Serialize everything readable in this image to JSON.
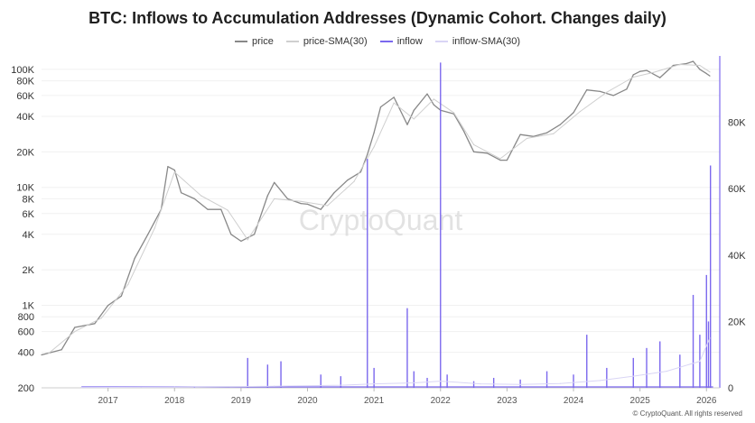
{
  "chart_data": {
    "type": "line",
    "title": "BTC: Inflows to Accumulation Addresses (Dynamic Cohort. Changes daily)",
    "watermark": "CryptoQuant",
    "footer": "© CryptoQuant. All rights reserved",
    "legend_position": "top-center",
    "x_tick_labels": [
      "2017",
      "2018",
      "2019",
      "2020",
      "2021",
      "2022",
      "2023",
      "2024",
      "2025",
      "2026"
    ],
    "left_axis": {
      "scale": "log",
      "range": [
        200,
        130000
      ],
      "tick_labels": [
        "100K",
        "80K",
        "60K",
        "40K",
        "20K",
        "10K",
        "8K",
        "6K",
        "4K",
        "2K",
        "1K",
        "800",
        "600",
        "400",
        "200"
      ],
      "tick_values": [
        100000,
        80000,
        60000,
        40000,
        20000,
        10000,
        8000,
        6000,
        4000,
        2000,
        1000,
        800,
        600,
        400,
        200
      ]
    },
    "right_axis": {
      "scale": "linear",
      "range": [
        0,
        100000
      ],
      "tick_labels": [
        "80K",
        "60K",
        "40K",
        "20K",
        "0"
      ],
      "tick_values": [
        80000,
        60000,
        40000,
        20000,
        0
      ]
    },
    "grid": true,
    "series": [
      {
        "name": "price",
        "axis": "left",
        "color": "#888888",
        "x": [
          2016.0,
          2016.3,
          2016.5,
          2016.8,
          2017.0,
          2017.2,
          2017.4,
          2017.6,
          2017.8,
          2017.9,
          2018.0,
          2018.1,
          2018.3,
          2018.5,
          2018.7,
          2018.85,
          2019.0,
          2019.2,
          2019.4,
          2019.5,
          2019.7,
          2019.9,
          2020.0,
          2020.2,
          2020.4,
          2020.6,
          2020.8,
          2020.9,
          2021.0,
          2021.1,
          2021.3,
          2021.5,
          2021.6,
          2021.8,
          2021.9,
          2022.0,
          2022.2,
          2022.35,
          2022.5,
          2022.7,
          2022.9,
          2023.0,
          2023.2,
          2023.4,
          2023.6,
          2023.8,
          2024.0,
          2024.2,
          2024.4,
          2024.6,
          2024.8,
          2024.9,
          2025.0,
          2025.1,
          2025.3,
          2025.5,
          2025.7,
          2025.8,
          2025.9,
          2026.0,
          2026.05
        ],
        "y": [
          380,
          420,
          650,
          700,
          1000,
          1200,
          2500,
          4000,
          6500,
          15000,
          14000,
          9000,
          8000,
          6500,
          6500,
          4000,
          3500,
          4000,
          8500,
          11000,
          8000,
          7300,
          7200,
          6500,
          9000,
          11500,
          13500,
          19000,
          29000,
          48000,
          58000,
          34000,
          45000,
          62000,
          50000,
          45000,
          42000,
          30000,
          20000,
          19500,
          17000,
          17000,
          28000,
          27000,
          29000,
          34000,
          43000,
          67000,
          65000,
          60000,
          68000,
          90000,
          96000,
          98000,
          85000,
          108000,
          112000,
          117000,
          100000,
          92000,
          88000
        ]
      },
      {
        "name": "price-SMA(30)",
        "axis": "left",
        "color": "#cfcfcf",
        "x": [
          2016.1,
          2016.5,
          2016.9,
          2017.3,
          2017.7,
          2018.0,
          2018.4,
          2018.8,
          2019.1,
          2019.5,
          2019.9,
          2020.3,
          2020.7,
          2021.0,
          2021.3,
          2021.6,
          2021.9,
          2022.2,
          2022.5,
          2022.9,
          2023.3,
          2023.7,
          2024.1,
          2024.5,
          2024.9,
          2025.2,
          2025.6,
          2025.9,
          2026.05
        ],
        "y": [
          390,
          600,
          780,
          1500,
          4500,
          13500,
          8500,
          6400,
          3600,
          8000,
          7600,
          7000,
          11200,
          22000,
          52000,
          38000,
          56000,
          43000,
          23000,
          17500,
          26000,
          28500,
          44000,
          64000,
          86000,
          94000,
          110000,
          108000,
          95000
        ]
      },
      {
        "name": "inflow",
        "axis": "right",
        "color": "#7b68ee",
        "x": [
          2016.6,
          2017.5,
          2018.3,
          2019.1,
          2019.4,
          2019.6,
          2020.2,
          2020.5,
          2020.9,
          2021.0,
          2021.5,
          2021.6,
          2021.8,
          2022.0,
          2022.1,
          2022.5,
          2022.8,
          2023.2,
          2023.6,
          2024.0,
          2024.2,
          2024.5,
          2024.9,
          2025.1,
          2025.3,
          2025.6,
          2025.8,
          2025.9,
          2026.0,
          2026.03,
          2026.06
        ],
        "y": [
          200,
          300,
          400,
          9000,
          7000,
          8000,
          4000,
          3500,
          69000,
          6000,
          24000,
          5000,
          3000,
          98000,
          4000,
          2000,
          3000,
          2500,
          5000,
          4000,
          16000,
          6000,
          9000,
          12000,
          14000,
          10000,
          28000,
          16000,
          34000,
          20000,
          67000
        ]
      },
      {
        "name": "inflow-SMA(30)",
        "axis": "right",
        "color": "#d9d5f5",
        "x": [
          2016.6,
          2018.0,
          2019.5,
          2020.5,
          2021.0,
          2021.6,
          2022.0,
          2022.6,
          2023.2,
          2023.8,
          2024.4,
          2024.9,
          2025.4,
          2025.9,
          2026.05
        ],
        "y": [
          100,
          200,
          500,
          800,
          1200,
          1500,
          2000,
          1200,
          1000,
          1300,
          2200,
          3500,
          5000,
          8000,
          15000
        ]
      }
    ]
  }
}
